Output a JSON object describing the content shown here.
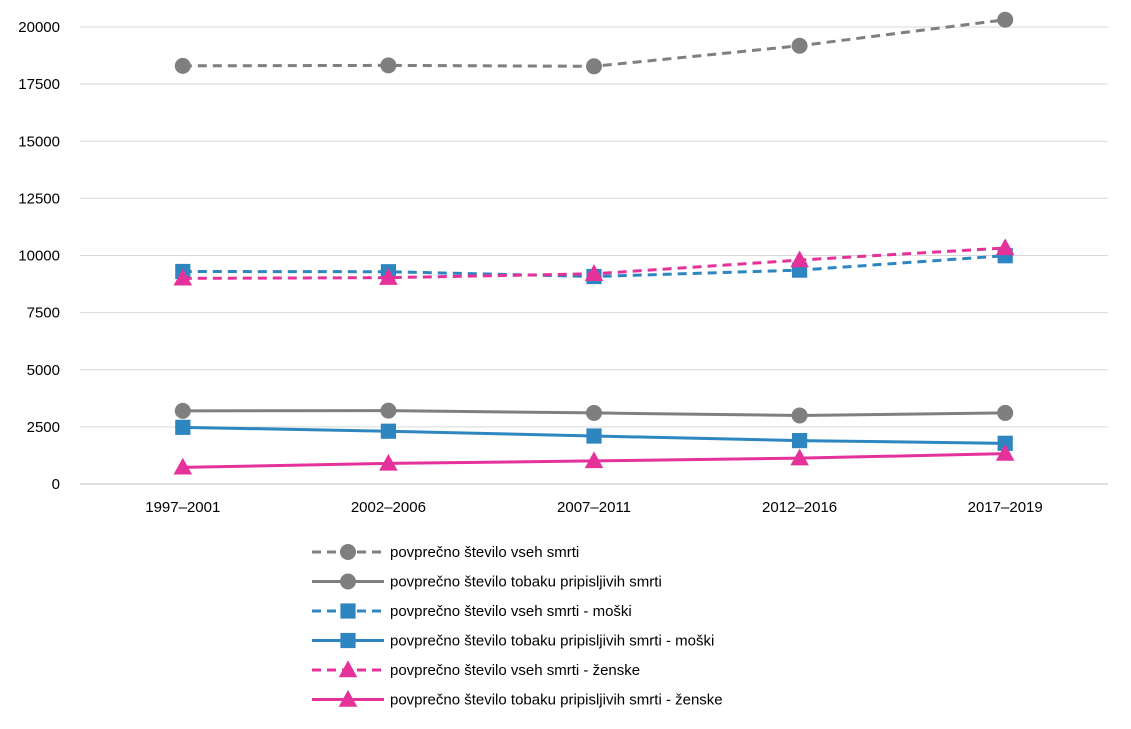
{
  "chart_data": {
    "type": "line",
    "title": "",
    "xlabel": "",
    "ylabel": "",
    "categories": [
      "1997–2001",
      "2002–2006",
      "2007–2011",
      "2012–2016",
      "2017–2019"
    ],
    "ylim": [
      0,
      20000
    ],
    "yticks": [
      "0",
      "2500",
      "5000",
      "7500",
      "10000",
      "12500",
      "15000",
      "17500",
      "20000"
    ],
    "ytick_values": [
      0,
      2500,
      5000,
      7500,
      10000,
      12500,
      15000,
      17500,
      20000
    ],
    "grid": true,
    "legend_position": "bottom",
    "series": [
      {
        "name": "povprečno število vseh smrti",
        "values": [
          18300,
          18320,
          18280,
          19180,
          20320
        ],
        "color": "#7f7f7f",
        "dash": true,
        "marker": "circle"
      },
      {
        "name": "povprečno število tobaku pripisljivih smrti",
        "values": [
          3200,
          3210,
          3110,
          3000,
          3110
        ],
        "color": "#7f7f7f",
        "dash": false,
        "marker": "circle"
      },
      {
        "name": "povprečno število vseh smrti  - moški",
        "values": [
          9300,
          9290,
          9080,
          9360,
          9990
        ],
        "color": "#2e86c1",
        "dash": true,
        "marker": "square"
      },
      {
        "name": "povprečno število tobaku pripisljivih smrti  - moški",
        "values": [
          2480,
          2310,
          2100,
          1900,
          1780
        ],
        "color": "#2e86c1",
        "dash": false,
        "marker": "square"
      },
      {
        "name": "povprečno število vseh smrti  - ženske",
        "values": [
          9000,
          9030,
          9200,
          9800,
          10330
        ],
        "color": "#e5329a",
        "dash": true,
        "marker": "triangle"
      },
      {
        "name": "povprečno število tobaku pripisljivih smrti  - ženske",
        "values": [
          730,
          900,
          1010,
          1130,
          1330
        ],
        "color": "#e5329a",
        "dash": false,
        "marker": "triangle"
      }
    ]
  }
}
